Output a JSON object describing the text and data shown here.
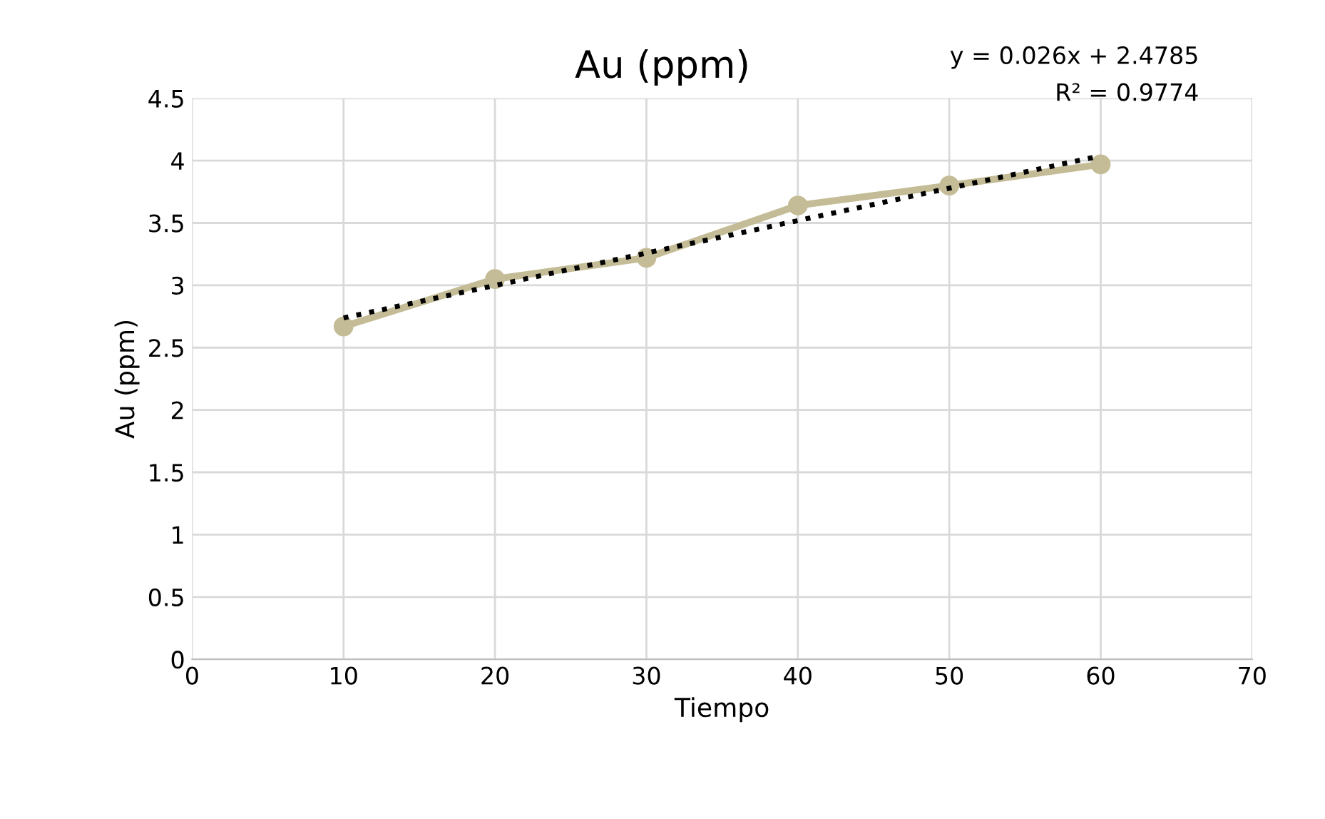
{
  "chart_data": {
    "type": "line",
    "title": "Au (ppm)",
    "xlabel": "Tiempo",
    "ylabel": "Au (ppm)",
    "x": [
      10,
      20,
      30,
      40,
      50,
      60
    ],
    "series": [
      {
        "color": "#c4bc96",
        "values": [
          2.67,
          3.05,
          3.22,
          3.64,
          3.8,
          3.97
        ],
        "marker": "circle",
        "line_style": "solid"
      },
      {
        "type": "line",
        "x": [
          10,
          60
        ],
        "color": "#000000",
        "values": [
          2.7385,
          4.0385
        ],
        "marker": "none",
        "line_style": "dotted"
      }
    ],
    "annotations": [
      "y = 0.026x + 2.4785",
      "R² = 0.9774"
    ],
    "xlim": [
      0,
      70
    ],
    "xticks": [
      0,
      10,
      20,
      30,
      40,
      50,
      60,
      70
    ],
    "ylim": [
      0,
      4.5
    ],
    "yticks": [
      0,
      0.5,
      1,
      1.5,
      2,
      2.5,
      3,
      3.5,
      4,
      4.5
    ],
    "grid": true,
    "legend": false
  }
}
